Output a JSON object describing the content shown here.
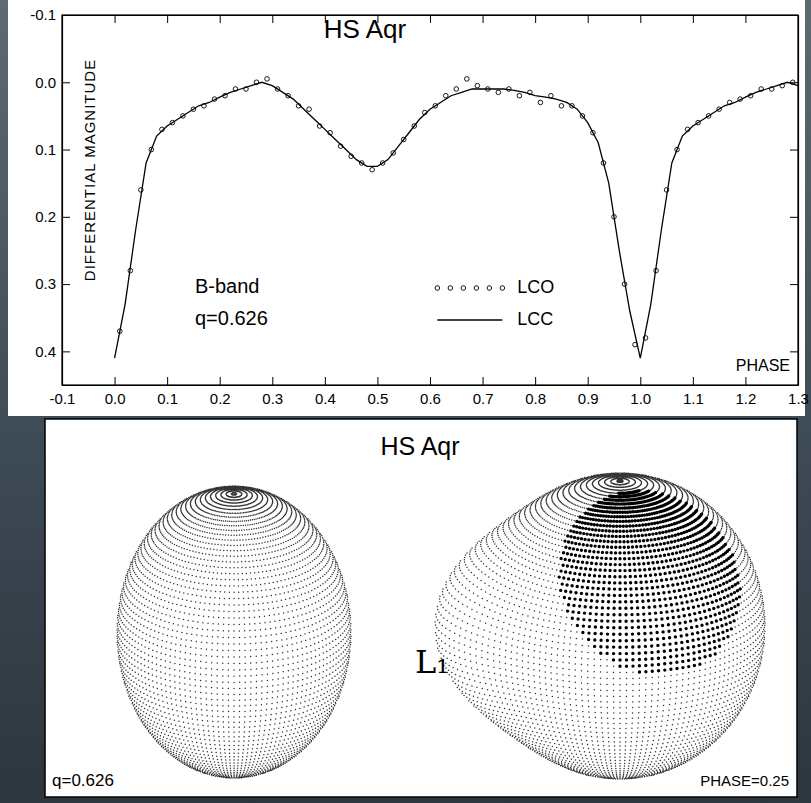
{
  "chart_data": {
    "type": "scatter",
    "title": "HS Aqr",
    "x_label": "PHASE",
    "y_label": "DIFFERENTIAL MAGNITUDE",
    "annotations": [
      "B-band",
      "q=0.626"
    ],
    "xlim": [
      -0.1,
      1.3
    ],
    "ylim": [
      -0.1,
      0.45
    ],
    "xticks": [
      -0.1,
      {
        "value": 0,
        "label": "0.0"
      },
      0.1,
      0.2,
      0.3,
      0.4,
      0.5,
      0.6,
      0.7,
      0.8,
      0.9,
      {
        "value": 1,
        "label": "1.0"
      },
      1.1,
      1.2,
      1.3
    ],
    "yticks": [
      -0.1,
      {
        "value": 0,
        "label": "0.0"
      },
      0.1,
      0.2,
      0.3,
      0.4
    ],
    "grid": false,
    "legend": "lower center",
    "series": [
      {
        "name": "LCO",
        "type": "scatter",
        "marker": "circle",
        "color": "#000000",
        "x": [
          0.01,
          0.03,
          0.05,
          0.07,
          0.09,
          0.11,
          0.13,
          0.15,
          0.17,
          0.19,
          0.21,
          0.23,
          0.25,
          0.27,
          0.29,
          0.31,
          0.33,
          0.35,
          0.37,
          0.39,
          0.41,
          0.43,
          0.45,
          0.47,
          0.49,
          0.51,
          0.53,
          0.55,
          0.57,
          0.59,
          0.61,
          0.63,
          0.65,
          0.67,
          0.69,
          0.71,
          0.73,
          0.75,
          0.77,
          0.79,
          0.81,
          0.83,
          0.85,
          0.87,
          0.89,
          0.91,
          0.93,
          0.95,
          0.97,
          0.99,
          1.01,
          1.03,
          1.05,
          1.07,
          1.09,
          1.11,
          1.13,
          1.15,
          1.17,
          1.19,
          1.21,
          1.23,
          1.25,
          1.27,
          1.29
        ],
        "values": [
          0.37,
          0.28,
          0.16,
          0.1,
          0.07,
          0.06,
          0.05,
          0.04,
          0.035,
          0.025,
          0.02,
          0.01,
          0.01,
          0,
          -0.005,
          0.01,
          0.02,
          0.035,
          0.04,
          0.065,
          0.075,
          0.095,
          0.11,
          0.12,
          0.13,
          0.12,
          0.105,
          0.085,
          0.065,
          0.045,
          0.035,
          0.02,
          0.01,
          -0.005,
          0.005,
          0.01,
          0.015,
          0.01,
          0.02,
          0.015,
          0.03,
          0.02,
          0.035,
          0.035,
          0.05,
          0.075,
          0.12,
          0.2,
          0.3,
          0.39,
          0.38,
          0.28,
          0.16,
          0.1,
          0.07,
          0.06,
          0.05,
          0.04,
          0.03,
          0.025,
          0.02,
          0.01,
          0.01,
          0.005,
          0
        ]
      },
      {
        "name": "LCC",
        "type": "line",
        "line_style": "solid",
        "color": "#000000",
        "x": [
          0,
          0.02,
          0.04,
          0.06,
          0.08,
          0.1,
          0.12,
          0.14,
          0.16,
          0.18,
          0.2,
          0.22,
          0.24,
          0.26,
          0.28,
          0.3,
          0.32,
          0.34,
          0.36,
          0.38,
          0.4,
          0.42,
          0.44,
          0.46,
          0.48,
          0.5,
          0.52,
          0.54,
          0.56,
          0.58,
          0.6,
          0.62,
          0.64,
          0.66,
          0.68,
          0.7,
          0.72,
          0.74,
          0.76,
          0.78,
          0.8,
          0.82,
          0.84,
          0.86,
          0.88,
          0.9,
          0.92,
          0.94,
          0.96,
          0.98,
          1,
          1.02,
          1.04,
          1.06,
          1.08,
          1.1,
          1.12,
          1.14,
          1.16,
          1.18,
          1.2,
          1.22,
          1.24,
          1.26,
          1.28,
          1.3
        ],
        "values": [
          0.41,
          0.33,
          0.22,
          0.12,
          0.08,
          0.065,
          0.055,
          0.045,
          0.035,
          0.03,
          0.022,
          0.015,
          0.01,
          0.005,
          0,
          0.005,
          0.015,
          0.025,
          0.04,
          0.055,
          0.07,
          0.085,
          0.1,
          0.115,
          0.125,
          0.125,
          0.115,
          0.095,
          0.075,
          0.055,
          0.04,
          0.03,
          0.02,
          0.015,
          0.01,
          0.01,
          0.01,
          0.01,
          0.012,
          0.015,
          0.02,
          0.022,
          0.025,
          0.03,
          0.04,
          0.06,
          0.09,
          0.15,
          0.25,
          0.34,
          0.41,
          0.33,
          0.22,
          0.12,
          0.08,
          0.065,
          0.055,
          0.045,
          0.035,
          0.03,
          0.022,
          0.015,
          0.01,
          0.005,
          0,
          0.005
        ]
      }
    ]
  },
  "diagram": {
    "title": "HS Aqr",
    "mass_ratio_label": "q=0.626",
    "phase_label": "PHASE=0.25",
    "point_label": "L₁"
  }
}
